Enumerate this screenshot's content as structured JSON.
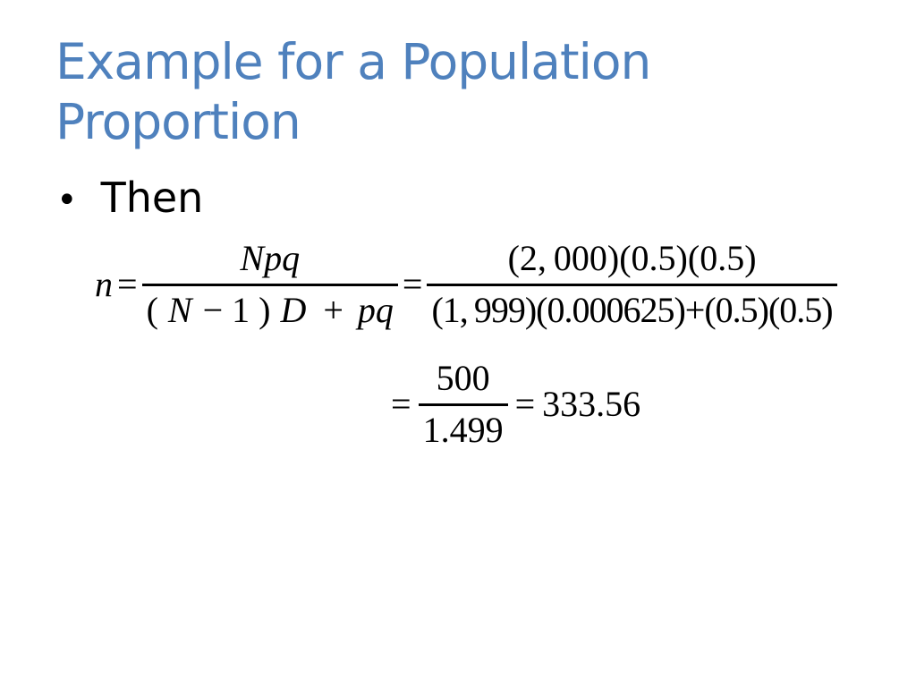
{
  "slide": {
    "background": "#ffffff",
    "title": {
      "line1": "Example for a Population",
      "line2": "Proportion",
      "color": "#4f81bd"
    },
    "bullet": {
      "marker": "•",
      "text": "Then"
    },
    "math": {
      "line1": {
        "lhs": "n",
        "equals1": "=",
        "frac1": {
          "numerator": "Npq",
          "den": {
            "open": "(",
            "N": "N",
            "minus": "−",
            "one": "1",
            "close": ")",
            "D": "D",
            "plus": "+",
            "pq": "pq"
          }
        },
        "equals2": "=",
        "frac2": {
          "numerator": "(2, 000)(0.5)(0.5)",
          "denominator": "(1, 999)(0.000625)+(0.5)(0.5)"
        }
      },
      "line2": {
        "equals1": "=",
        "frac": {
          "numerator": "500",
          "denominator": "1.499"
        },
        "equals2": "=",
        "result": "333.56"
      }
    }
  }
}
